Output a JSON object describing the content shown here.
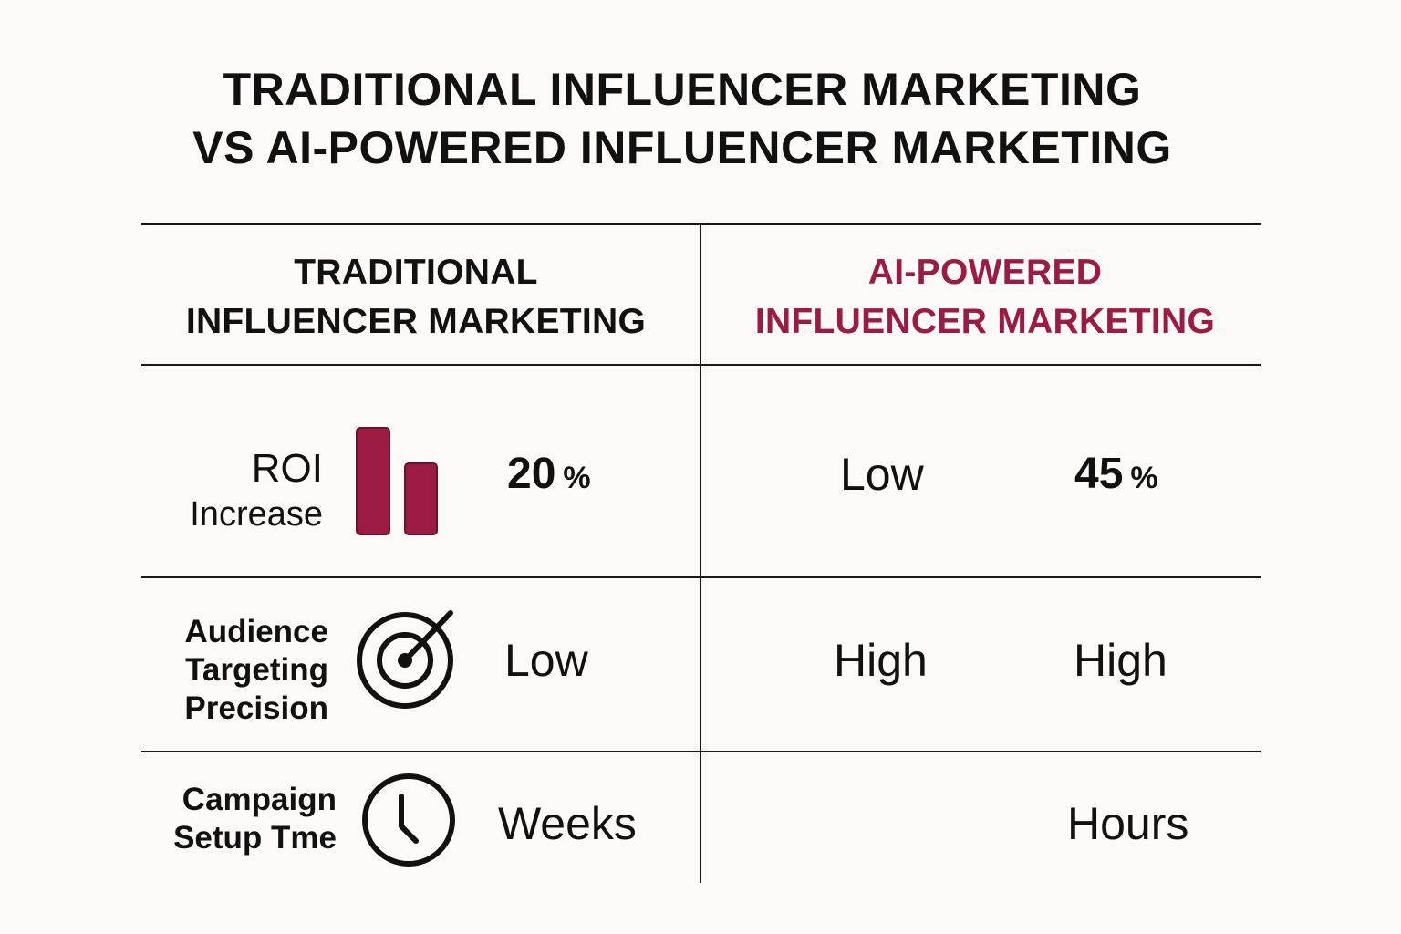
{
  "title": {
    "line1": "TRADITIONAL INFLUENCER MARKETING",
    "line2": "VS AI-POWERED INFLUENCER MARKETING"
  },
  "columns": {
    "traditional": {
      "line1": "TRADITIONAL",
      "line2": "INFLUENCER MARKETING"
    },
    "ai": {
      "line1": "AI-POWERED",
      "line2": "INFLUENCER MARKETING"
    }
  },
  "rows": [
    {
      "label_line1": "ROI",
      "label_line2": "Increase",
      "icon": "bar-chart-icon",
      "traditional_value": "20",
      "traditional_unit": "%",
      "ai_rating": "Low",
      "ai_value": "45",
      "ai_unit": "%"
    },
    {
      "label_line1": "Audience",
      "label_line2": "Targeting",
      "label_line3": "Precision",
      "icon": "target-icon",
      "traditional_value": "Low",
      "ai_rating": "High",
      "ai_value": "High"
    },
    {
      "label_line1": "Campaign",
      "label_line2": "Setup Tme",
      "icon": "clock-icon",
      "traditional_value": "Weeks",
      "ai_value": "Hours"
    }
  ],
  "colors": {
    "accent": "#9b1b42",
    "text": "#111111",
    "background": "#fbfaf8",
    "rule": "#1a1a1a"
  }
}
